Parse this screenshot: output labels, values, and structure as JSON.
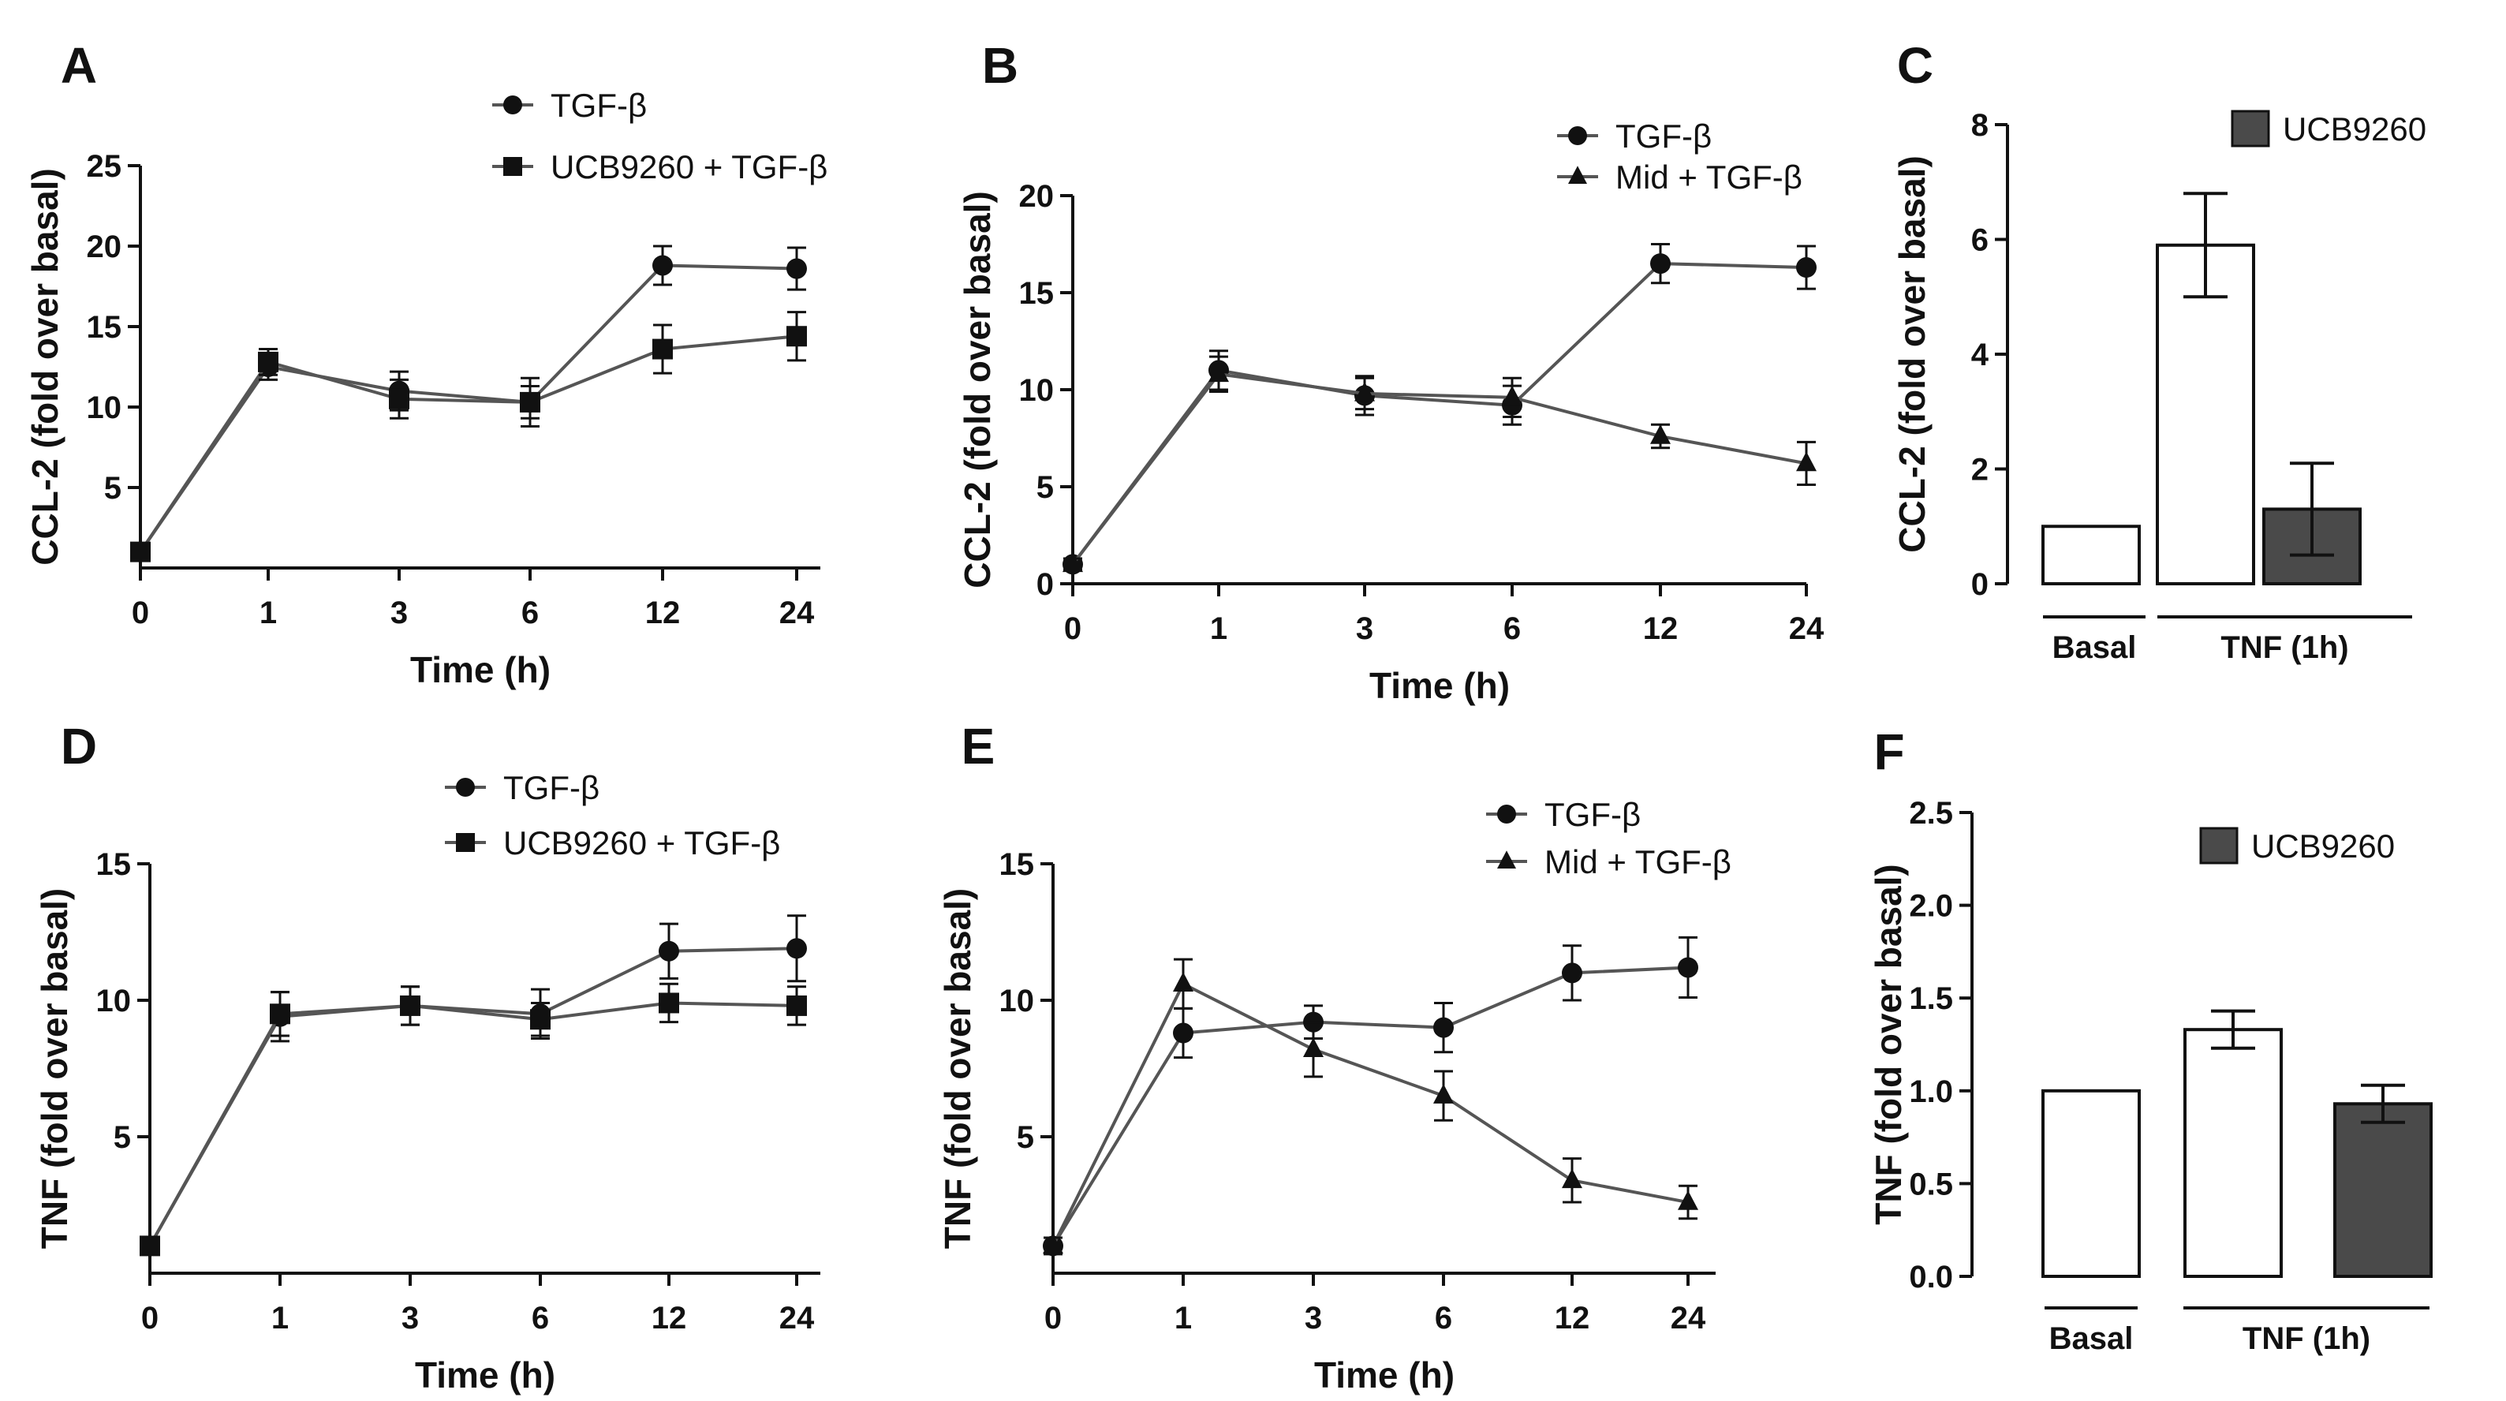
{
  "chart_data": [
    {
      "id": "A",
      "type": "line",
      "panel_label": "A",
      "xlabel": "Time (h)",
      "ylabel": "CCL-2 (fold over basal)",
      "categories": [
        "0",
        "1",
        "3",
        "6",
        "12",
        "24"
      ],
      "ylim": [
        0,
        25
      ],
      "yticks": [
        "5",
        "10",
        "15",
        "20",
        "25"
      ],
      "series": [
        {
          "name": "TGF-β",
          "marker": "circle",
          "values": [
            1,
            12.5,
            11.0,
            10.3,
            18.8,
            18.6
          ],
          "errors": [
            0.3,
            0.8,
            1.2,
            1.5,
            1.2,
            1.3
          ]
        },
        {
          "name": "UCB9260 + TGF-β",
          "marker": "square",
          "values": [
            1,
            12.8,
            10.5,
            10.3,
            13.6,
            14.4
          ],
          "errors": [
            0.3,
            0.8,
            1.2,
            1.0,
            1.5,
            1.5
          ]
        }
      ]
    },
    {
      "id": "B",
      "type": "line",
      "panel_label": "B",
      "xlabel": "Time (h)",
      "ylabel": "CCL-2 (fold over basal)",
      "categories": [
        "0",
        "1",
        "3",
        "6",
        "12",
        "24"
      ],
      "ylim": [
        0,
        20
      ],
      "yticks": [
        "0",
        "5",
        "10",
        "15",
        "20"
      ],
      "series": [
        {
          "name": "TGF-β",
          "marker": "circle",
          "values": [
            1,
            11.0,
            9.7,
            9.2,
            16.5,
            16.3
          ],
          "errors": [
            0.3,
            1.0,
            1.0,
            1.0,
            1.0,
            1.1
          ]
        },
        {
          "name": "Mid + TGF-β",
          "marker": "triangle",
          "values": [
            1,
            10.8,
            9.8,
            9.6,
            7.6,
            6.2
          ],
          "errors": [
            0.3,
            0.9,
            0.8,
            1.0,
            0.6,
            1.1
          ]
        }
      ]
    },
    {
      "id": "C",
      "type": "bar",
      "panel_label": "C",
      "ylabel": "CCL-2 (fold over basal)",
      "ylim": [
        0,
        8
      ],
      "yticks": [
        "0",
        "2",
        "4",
        "6",
        "8"
      ],
      "legend": "UCB9260",
      "bars": [
        {
          "value": 1.0,
          "error": 0,
          "filled": false
        },
        {
          "value": 5.9,
          "error": 0.9,
          "filled": false
        },
        {
          "value": 1.3,
          "error": 0.8,
          "filled": true
        }
      ],
      "groups": [
        "Basal",
        "TNF (1h)"
      ]
    },
    {
      "id": "D",
      "type": "line",
      "panel_label": "D",
      "xlabel": "Time (h)",
      "ylabel": "TNF (fold over basal)",
      "categories": [
        "0",
        "1",
        "3",
        "6",
        "12",
        "24"
      ],
      "ylim": [
        0,
        15
      ],
      "yticks": [
        "5",
        "10",
        "15"
      ],
      "series": [
        {
          "name": "TGF-β",
          "marker": "circle",
          "values": [
            1,
            9.4,
            9.8,
            9.5,
            11.8,
            11.9
          ],
          "errors": [
            0.3,
            0.9,
            0.7,
            0.9,
            1.0,
            1.2
          ]
        },
        {
          "name": "UCB9260 + TGF-β",
          "marker": "square",
          "values": [
            1,
            9.5,
            9.8,
            9.3,
            9.9,
            9.8
          ],
          "errors": [
            0.3,
            0.8,
            0.7,
            0.6,
            0.7,
            0.7
          ]
        }
      ]
    },
    {
      "id": "E",
      "type": "line",
      "panel_label": "E",
      "xlabel": "Time (h)",
      "ylabel": "TNF (fold over basal)",
      "categories": [
        "0",
        "1",
        "3",
        "6",
        "12",
        "24"
      ],
      "ylim": [
        0,
        15
      ],
      "yticks": [
        "5",
        "10",
        "15"
      ],
      "series": [
        {
          "name": "TGF-β",
          "marker": "circle",
          "values": [
            1,
            8.8,
            9.2,
            9.0,
            11.0,
            11.2
          ],
          "errors": [
            0.3,
            0.9,
            0.6,
            0.9,
            1.0,
            1.1
          ]
        },
        {
          "name": "Mid + TGF-β",
          "marker": "triangle",
          "values": [
            1,
            10.6,
            8.2,
            6.5,
            3.4,
            2.6
          ],
          "errors": [
            0.3,
            0.9,
            1.0,
            0.9,
            0.8,
            0.6
          ]
        }
      ]
    },
    {
      "id": "F",
      "type": "bar",
      "panel_label": "F",
      "ylabel": "TNF (fold over basal)",
      "ylim": [
        0,
        2.5
      ],
      "yticks": [
        "0.0",
        "0.5",
        "1.0",
        "1.5",
        "2.0",
        "2.5"
      ],
      "legend": "UCB9260",
      "bars": [
        {
          "value": 1.0,
          "error": 0,
          "filled": false
        },
        {
          "value": 1.33,
          "error": 0.1,
          "filled": false
        },
        {
          "value": 0.93,
          "error": 0.1,
          "filled": true
        }
      ],
      "groups": [
        "Basal",
        "TNF (1h)"
      ]
    }
  ],
  "colors": {
    "ink": "#111111",
    "line": "#555555",
    "filled_bar": "#4a4a4a",
    "open_bar": "#ffffff"
  }
}
